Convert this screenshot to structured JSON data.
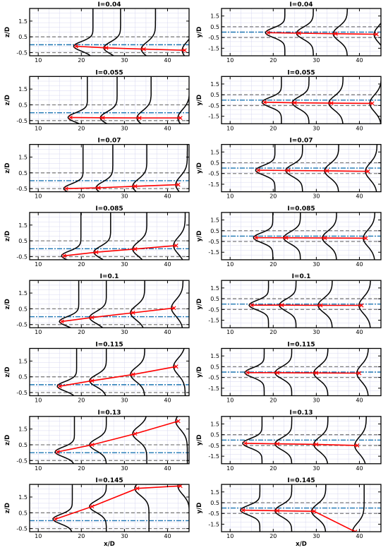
{
  "chart_data": {
    "type": "line",
    "colors": {
      "profile": "#000000",
      "centerline": "#ff0000",
      "center_ref": "#1f77b4",
      "half_width": "#808080",
      "grid": "#d8d8f0"
    },
    "left_column": {
      "ylabel": "z/D",
      "xlabel": "x/D",
      "xlim": [
        8,
        45
      ],
      "ylim": [
        -0.7,
        2.3
      ],
      "xticks": [
        "10",
        "20",
        "30",
        "40"
      ],
      "yticks": [
        "-0.5",
        "0.5",
        "1.5"
      ],
      "gray_lines": [
        -0.5,
        0.5
      ],
      "blue_line": 0.0,
      "panels": [
        {
          "title": "I=0.04",
          "x": [
            18.8,
            25.8,
            34.5,
            44.0
          ],
          "y": [
            -0.1,
            -0.2,
            -0.28,
            -0.35
          ]
        },
        {
          "title": "I=0.055",
          "x": [
            17.5,
            25.0,
            33.5,
            43.0
          ],
          "y": [
            -0.3,
            -0.32,
            -0.33,
            -0.33
          ]
        },
        {
          "title": "I=0.07",
          "x": [
            16.5,
            24.0,
            32.5,
            42.5
          ],
          "y": [
            -0.5,
            -0.45,
            -0.35,
            -0.25
          ]
        },
        {
          "title": "I=0.085",
          "x": [
            16.0,
            23.5,
            32.5,
            42.0
          ],
          "y": [
            -0.45,
            -0.22,
            -0.02,
            0.2
          ]
        },
        {
          "title": "I=0.1",
          "x": [
            15.5,
            22.5,
            32.0,
            41.5
          ],
          "y": [
            -0.3,
            -0.05,
            0.25,
            0.55
          ]
        },
        {
          "title": "I=0.115",
          "x": [
            15.0,
            22.5,
            32.0,
            42.0
          ],
          "y": [
            -0.1,
            0.25,
            0.65,
            1.15
          ]
        },
        {
          "title": "I=0.13",
          "x": [
            14.5,
            22.5,
            32.5,
            42.5
          ],
          "y": [
            0.05,
            0.5,
            1.2,
            2.0
          ]
        },
        {
          "title": "I=0.145",
          "x": [
            14.0,
            22.5,
            33.0,
            43.0
          ],
          "y": [
            0.1,
            0.9,
            2.05,
            2.2
          ]
        }
      ]
    },
    "right_column": {
      "ylabel": "y/D",
      "xlabel": "x/D",
      "xlim": [
        8,
        45
      ],
      "ylim": [
        -2.2,
        2.2
      ],
      "xticks": [
        "10",
        "20",
        "30",
        "40"
      ],
      "yticks": [
        "-1.5",
        "-0.5",
        "0.5",
        "1.5"
      ],
      "gray_lines": [
        -0.5,
        0.5
      ],
      "blue_line": 0.0,
      "panels": [
        {
          "title": "I=0.04",
          "x": [
            18.8,
            26.0,
            34.5,
            44.0
          ],
          "y": [
            -0.05,
            -0.1,
            -0.15,
            -0.2
          ]
        },
        {
          "title": "I=0.055",
          "x": [
            18.0,
            25.0,
            33.5,
            43.0
          ],
          "y": [
            -0.2,
            -0.25,
            -0.28,
            -0.3
          ]
        },
        {
          "title": "I=0.07",
          "x": [
            16.5,
            23.5,
            32.5,
            42.0
          ],
          "y": [
            -0.2,
            -0.22,
            -0.25,
            -0.3
          ]
        },
        {
          "title": "I=0.085",
          "x": [
            16.0,
            23.0,
            32.0,
            41.5
          ],
          "y": [
            -0.15,
            -0.16,
            -0.18,
            -0.2
          ]
        },
        {
          "title": "I=0.1",
          "x": [
            15.0,
            22.0,
            31.0,
            40.5
          ],
          "y": [
            -0.1,
            -0.1,
            -0.12,
            -0.12
          ]
        },
        {
          "title": "I=0.115",
          "x": [
            14.0,
            21.0,
            30.0,
            40.0
          ],
          "y": [
            -0.05,
            -0.06,
            -0.08,
            -0.1
          ]
        },
        {
          "title": "I=0.13",
          "x": [
            13.5,
            21.0,
            30.0,
            39.5
          ],
          "y": [
            -0.3,
            -0.35,
            -0.4,
            -0.5
          ]
        },
        {
          "title": "I=0.145",
          "x": [
            13.0,
            21.0,
            29.5,
            39.0
          ],
          "y": [
            -0.2,
            -0.25,
            -0.3,
            -2.2
          ]
        }
      ]
    }
  }
}
